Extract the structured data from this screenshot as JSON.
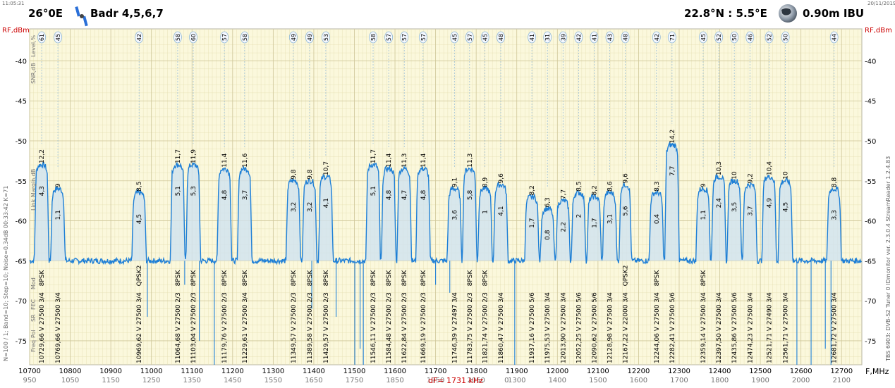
{
  "header": {
    "time": "11:05:31",
    "date": "20/11/2019",
    "orbit": "26°0E",
    "satellite": "Badr 4,5,6,7",
    "location": "22.8°N : 5.5°E",
    "antenna": "0.90m IBU"
  },
  "side_labels": {
    "left": "N=100 / 1; Band=10; Step=10; Noise=0.34dB   00:33:42  K=71",
    "right": "TBS 6903: DVB-S2 Tuner 0   IDmonitor  ver. 2.3.0.4  StreamReader 1.2.4.83"
  },
  "row_labels": {
    "level": "Level,%",
    "snr": "SNR,dB",
    "link": "Link Margin,dB",
    "mod": "Mod",
    "fec": "FEC",
    "sr": "SR",
    "pol": "Pol",
    "freq": "Freq"
  },
  "chart_data": {
    "type": "line",
    "title": "",
    "xlabel": "F,MHz",
    "ylabel": "RF,dBm",
    "xlim": [
      10700,
      12750
    ],
    "ylim": [
      -78,
      -36
    ],
    "x_ticks": [
      10700,
      10800,
      10900,
      11000,
      11100,
      11200,
      11300,
      11400,
      11500,
      11600,
      11700,
      11800,
      11900,
      12000,
      12100,
      12200,
      12300,
      12400,
      12500,
      12600,
      12700
    ],
    "if_ticks": [
      "950",
      "1050",
      "1150",
      "1250",
      "1350",
      "1450",
      "1550",
      "1650",
      "1750",
      "1850",
      "1950",
      "2050",
      "0",
      "1300",
      "1400",
      "1500",
      "1600",
      "1700",
      "1800",
      "1900",
      "2000",
      "2100"
    ],
    "y_ticks": [
      -40,
      -45,
      -50,
      -55,
      -60,
      -65,
      -70,
      -75
    ],
    "noise_floor": -65,
    "grid": true,
    "marker": "dF= 1731 kHz",
    "transponders": [
      {
        "freq": "10729,66",
        "f": 10729.66,
        "pol": "V",
        "sr": "27500",
        "fec": "3/4",
        "mod": "8PSK",
        "level": "61",
        "snr": "12,2",
        "margin": "4,3",
        "peak": -53
      },
      {
        "freq": "10769,66",
        "f": 10769.66,
        "pol": "V",
        "sr": "27500",
        "fec": "3/4",
        "mod": "",
        "level": "45",
        "snr": "9",
        "margin": "1,1",
        "peak": -56
      },
      {
        "freq": "10969,62",
        "f": 10969.62,
        "pol": "V",
        "sr": "27500",
        "fec": "3/4",
        "mod": "QPSK2",
        "level": "42",
        "snr": "8,5",
        "margin": "4,5",
        "peak": -56.5
      },
      {
        "freq": "11064,68",
        "f": 11064.68,
        "pol": "V",
        "sr": "27500",
        "fec": "2/3",
        "mod": "8PSK",
        "level": "58",
        "snr": "11,7",
        "margin": "5,1",
        "peak": -53
      },
      {
        "freq": "11103,04",
        "f": 11103.04,
        "pol": "V",
        "sr": "27500",
        "fec": "2/3",
        "mod": "8PSK",
        "level": "60",
        "snr": "11,9",
        "margin": "5,3",
        "peak": -53
      },
      {
        "freq": "11179,76",
        "f": 11179.76,
        "pol": "V",
        "sr": "27500",
        "fec": "2/3",
        "mod": "8PSK",
        "level": "57",
        "snr": "11,4",
        "margin": "4,8",
        "peak": -53.5
      },
      {
        "freq": "11229,61",
        "f": 11229.61,
        "pol": "V",
        "sr": "27500",
        "fec": "3/4",
        "mod": "8PSK",
        "level": "58",
        "snr": "11,6",
        "margin": "3,7",
        "peak": -53.5
      },
      {
        "freq": "11349,57",
        "f": 11349.57,
        "pol": "V",
        "sr": "27500",
        "fec": "2/3",
        "mod": "8PSK",
        "level": "49",
        "snr": "9,8",
        "margin": "3,2",
        "peak": -55
      },
      {
        "freq": "11389,58",
        "f": 11389.58,
        "pol": "V",
        "sr": "27500",
        "fec": "2/3",
        "mod": "8PSK",
        "level": "49",
        "snr": "9,8",
        "margin": "3,2",
        "peak": -55
      },
      {
        "freq": "11429,57",
        "f": 11429.57,
        "pol": "V",
        "sr": "27500",
        "fec": "2/3",
        "mod": "8PSK",
        "level": "53",
        "snr": "10,7",
        "margin": "4,1",
        "peak": -54.5
      },
      {
        "freq": "11546,11",
        "f": 11546.11,
        "pol": "V",
        "sr": "27500",
        "fec": "2/3",
        "mod": "8PSK",
        "level": "58",
        "snr": "11,7",
        "margin": "5,1",
        "peak": -53
      },
      {
        "freq": "11584,48",
        "f": 11584.48,
        "pol": "V",
        "sr": "27500",
        "fec": "2/3",
        "mod": "8PSK",
        "level": "57",
        "snr": "11,4",
        "margin": "4,8",
        "peak": -53.5
      },
      {
        "freq": "11622,84",
        "f": 11622.84,
        "pol": "V",
        "sr": "27500",
        "fec": "2/3",
        "mod": "8PSK",
        "level": "57",
        "snr": "11,3",
        "margin": "4,7",
        "peak": -53.5
      },
      {
        "freq": "11669,19",
        "f": 11669.19,
        "pol": "V",
        "sr": "27500",
        "fec": "2/3",
        "mod": "8PSK",
        "level": "57",
        "snr": "11,4",
        "margin": "4,8",
        "peak": -53.5
      },
      {
        "freq": "11746,39",
        "f": 11746.39,
        "pol": "V",
        "sr": "27497",
        "fec": "3/4",
        "mod": "",
        "level": "45",
        "snr": "9,1",
        "margin": "3,6",
        "peak": -56
      },
      {
        "freq": "11783,75",
        "f": 11783.75,
        "pol": "V",
        "sr": "27500",
        "fec": "2/3",
        "mod": "8PSK",
        "level": "57",
        "snr": "11,3",
        "margin": "5,8",
        "peak": -53.5
      },
      {
        "freq": "11821,74",
        "f": 11821.74,
        "pol": "V",
        "sr": "27500",
        "fec": "2/3",
        "mod": "8PSK",
        "level": "45",
        "snr": "8,9",
        "margin": "1",
        "peak": -56
      },
      {
        "freq": "11860,47",
        "f": 11860.47,
        "pol": "V",
        "sr": "27500",
        "fec": "3/4",
        "mod": "",
        "level": "48",
        "snr": "9,6",
        "margin": "4,1",
        "peak": -55.5
      },
      {
        "freq": "11937,16",
        "f": 11937.16,
        "pol": "V",
        "sr": "27500",
        "fec": "5/6",
        "mod": "",
        "level": "41",
        "snr": "8,2",
        "margin": "1,7",
        "peak": -57
      },
      {
        "freq": "11975,53",
        "f": 11975.53,
        "pol": "V",
        "sr": "27500",
        "fec": "3/4",
        "mod": "",
        "level": "31",
        "snr": "6,3",
        "margin": "0,8",
        "peak": -58.5
      },
      {
        "freq": "12013,90",
        "f": 12013.9,
        "pol": "V",
        "sr": "27500",
        "fec": "3/4",
        "mod": "",
        "level": "39",
        "snr": "7,7",
        "margin": "2,2",
        "peak": -57.5
      },
      {
        "freq": "12052,25",
        "f": 12052.25,
        "pol": "V",
        "sr": "27500",
        "fec": "5/6",
        "mod": "",
        "level": "42",
        "snr": "8,5",
        "margin": "2",
        "peak": -56.5
      },
      {
        "freq": "12090,62",
        "f": 12090.62,
        "pol": "V",
        "sr": "27500",
        "fec": "5/6",
        "mod": "",
        "level": "41",
        "snr": "8,2",
        "margin": "1,7",
        "peak": -57
      },
      {
        "freq": "12128,98",
        "f": 12128.98,
        "pol": "V",
        "sr": "27500",
        "fec": "3/4",
        "mod": "",
        "level": "43",
        "snr": "8,6",
        "margin": "3,1",
        "peak": -56.5
      },
      {
        "freq": "12167,22",
        "f": 12167.22,
        "pol": "V",
        "sr": "22000",
        "fec": "3/4",
        "mod": "QPSK2",
        "level": "48",
        "snr": "9,6",
        "margin": "5,6",
        "peak": -55.5
      },
      {
        "freq": "12244,06",
        "f": 12244.06,
        "pol": "V",
        "sr": "27500",
        "fec": "3/4",
        "mod": "8PSK",
        "level": "42",
        "snr": "8,3",
        "margin": "0,4",
        "peak": -56.5
      },
      {
        "freq": "12282,41",
        "f": 12282.41,
        "pol": "V",
        "sr": "27500",
        "fec": "5/6",
        "mod": "",
        "level": "71",
        "snr": "14,2",
        "margin": "7,7",
        "peak": -50.5
      },
      {
        "freq": "12359,14",
        "f": 12359.14,
        "pol": "V",
        "sr": "27500",
        "fec": "3/4",
        "mod": "8PSK",
        "level": "45",
        "snr": "9",
        "margin": "1,1",
        "peak": -56
      },
      {
        "freq": "12397,50",
        "f": 12397.5,
        "pol": "V",
        "sr": "27500",
        "fec": "3/4",
        "mod": "",
        "level": "52",
        "snr": "10,3",
        "margin": "2,4",
        "peak": -54.5
      },
      {
        "freq": "12435,86",
        "f": 12435.86,
        "pol": "V",
        "sr": "27500",
        "fec": "5/6",
        "mod": "",
        "level": "50",
        "snr": "10",
        "margin": "3,5",
        "peak": -55
      },
      {
        "freq": "12474,23",
        "f": 12474.23,
        "pol": "V",
        "sr": "27500",
        "fec": "3/4",
        "mod": "",
        "level": "46",
        "snr": "9,2",
        "margin": "3,7",
        "peak": -55.5
      },
      {
        "freq": "12521,71",
        "f": 12521.71,
        "pol": "V",
        "sr": "27490",
        "fec": "3/4",
        "mod": "",
        "level": "52",
        "snr": "10,4",
        "margin": "4,9",
        "peak": -54.5
      },
      {
        "freq": "12561,71",
        "f": 12561.71,
        "pol": "V",
        "sr": "27500",
        "fec": "3/4",
        "mod": "",
        "level": "50",
        "snr": "10",
        "margin": "4,5",
        "peak": -55
      },
      {
        "freq": "12681,72",
        "f": 12681.72,
        "pol": "V",
        "sr": "27500",
        "fec": "3/4",
        "mod": "",
        "level": "44",
        "snr": "8,8",
        "margin": "3,3",
        "peak": -56
      }
    ]
  },
  "colors": {
    "axis_label": "#cc0000",
    "trace": "#1e7fd6",
    "fill": "#cfe2f0",
    "plot_bg": "#fbf8dc",
    "grid": "#e3ddb0",
    "marker_text": "#cc0000"
  }
}
